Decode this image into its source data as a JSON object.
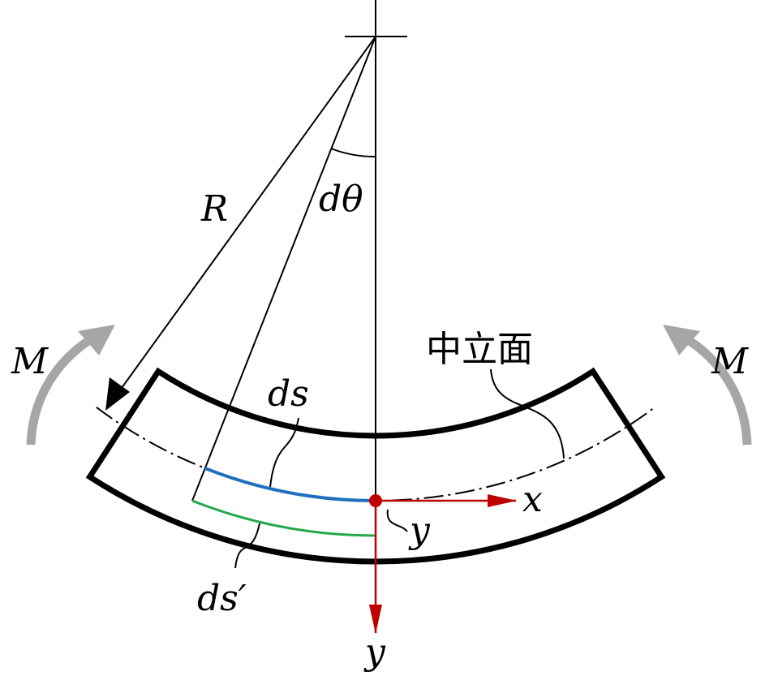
{
  "labels": {
    "radius": "R",
    "angle": "dθ",
    "moment_left": "M",
    "moment_right": "M",
    "neutral_surface": "中立面",
    "ds": "ds",
    "ds_prime": "ds′",
    "x_axis": "x",
    "y_distance": "y",
    "y_axis": "y"
  }
}
